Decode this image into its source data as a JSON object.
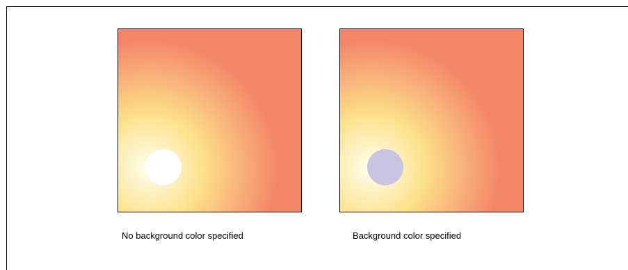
{
  "panels": [
    {
      "caption": "No background color specified",
      "circle_color": "#ffffff"
    },
    {
      "caption": "Background color specified",
      "circle_color": "#c8c4e2"
    }
  ],
  "gradient": {
    "inner_color": "#fffff0",
    "mid_color": "#fde089",
    "outer_color": "#f4876a"
  },
  "border_color": "#000000"
}
